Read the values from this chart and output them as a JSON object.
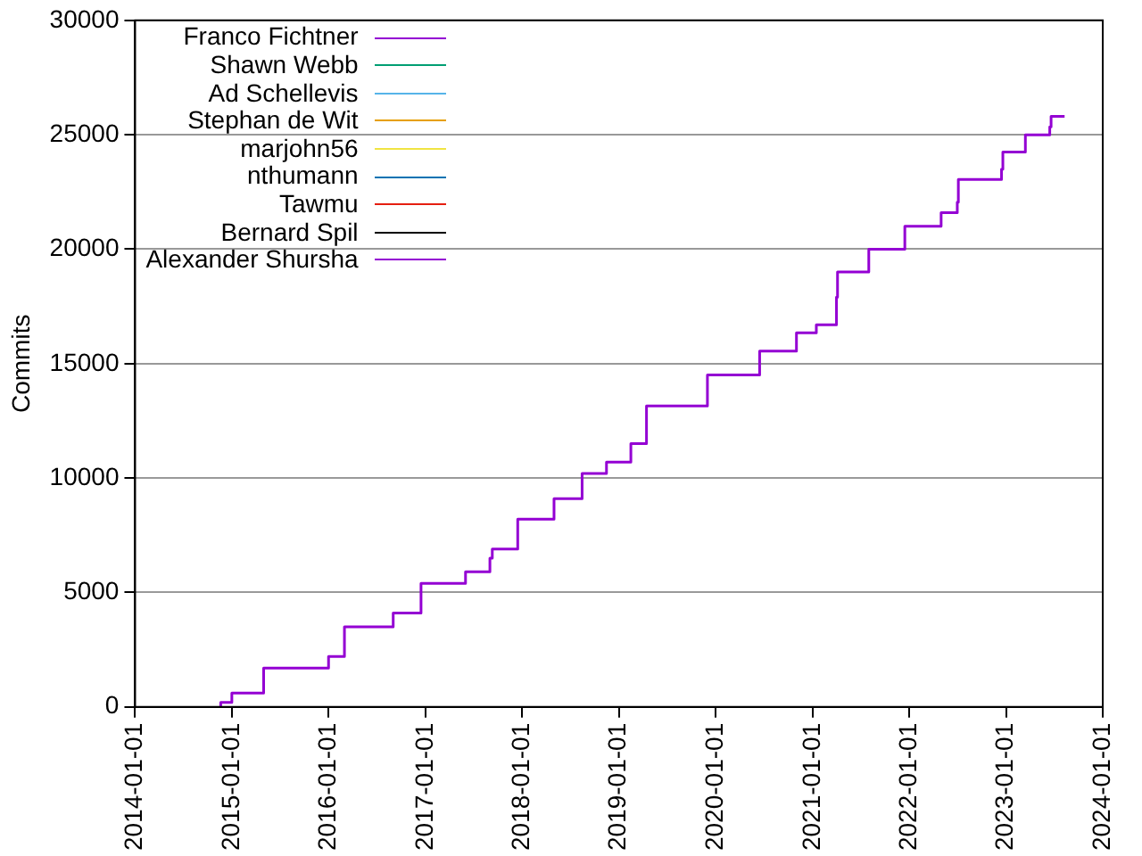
{
  "chart_data": {
    "type": "step",
    "ylabel": "Commits",
    "x": [
      "2014-11-20",
      "2015-01-01",
      "2015-05-01",
      "2016-01-01",
      "2016-03-01",
      "2016-09-01",
      "2016-12-15",
      "2017-06-01",
      "2017-09-01",
      "2017-09-10",
      "2017-12-15",
      "2018-05-01",
      "2018-08-15",
      "2018-11-15",
      "2019-02-15",
      "2019-04-15",
      "2019-12-01",
      "2020-06-15",
      "2020-11-01",
      "2021-01-15",
      "2021-04-01",
      "2021-04-05",
      "2021-08-01",
      "2021-12-15",
      "2022-05-01",
      "2022-07-01",
      "2022-07-05",
      "2022-12-15",
      "2022-12-20",
      "2023-03-15",
      "2023-06-15",
      "2023-06-20",
      "2023-08-10"
    ],
    "series": [
      {
        "name": "Franco Fichtner",
        "color": "#9400d3",
        "values": [
          0,
          200,
          600,
          1700,
          2200,
          3500,
          4100,
          5400,
          5900,
          6500,
          6900,
          8200,
          9100,
          10200,
          10700,
          11500,
          13150,
          14500,
          15550,
          16350,
          16700,
          17900,
          19000,
          20000,
          21000,
          21600,
          22050,
          23050,
          23500,
          24250,
          25000,
          25350,
          25800
        ]
      },
      {
        "name": "Shawn Webb",
        "color": "#009e73",
        "values": [
          null,
          null,
          null,
          null,
          null,
          null,
          null,
          null,
          null,
          null,
          null,
          null,
          null,
          null,
          null,
          null,
          null,
          null,
          null,
          null,
          null,
          null,
          null,
          null,
          null,
          null,
          null,
          null,
          null,
          null,
          null,
          null,
          null
        ]
      },
      {
        "name": "Ad Schellevis",
        "color": "#56b4e9",
        "values": [
          null,
          null,
          null,
          null,
          null,
          null,
          null,
          null,
          null,
          null,
          null,
          null,
          null,
          null,
          null,
          null,
          null,
          null,
          null,
          null,
          null,
          null,
          null,
          null,
          null,
          null,
          null,
          null,
          null,
          null,
          null,
          null,
          null
        ]
      },
      {
        "name": "Stephan de Wit",
        "color": "#e69f00",
        "values": [
          null,
          null,
          null,
          null,
          null,
          null,
          null,
          null,
          null,
          null,
          null,
          null,
          null,
          null,
          null,
          null,
          null,
          null,
          null,
          null,
          null,
          null,
          null,
          null,
          null,
          null,
          null,
          null,
          null,
          null,
          null,
          null,
          null
        ]
      },
      {
        "name": "marjohn56",
        "color": "#f0e442",
        "values": [
          null,
          null,
          null,
          null,
          null,
          null,
          null,
          null,
          null,
          null,
          null,
          null,
          null,
          null,
          null,
          null,
          null,
          null,
          null,
          null,
          null,
          null,
          null,
          null,
          null,
          null,
          null,
          null,
          null,
          null,
          null,
          null,
          null
        ]
      },
      {
        "name": "nthumann",
        "color": "#0072b2",
        "values": [
          null,
          null,
          null,
          null,
          null,
          null,
          null,
          null,
          null,
          null,
          null,
          null,
          null,
          null,
          null,
          null,
          null,
          null,
          null,
          null,
          null,
          null,
          null,
          null,
          null,
          null,
          null,
          null,
          null,
          null,
          null,
          null,
          null
        ]
      },
      {
        "name": "Tawmu",
        "color": "#e51e10",
        "values": [
          null,
          null,
          null,
          null,
          null,
          null,
          null,
          null,
          null,
          null,
          null,
          null,
          null,
          null,
          null,
          null,
          null,
          null,
          null,
          null,
          null,
          null,
          null,
          null,
          null,
          null,
          null,
          null,
          null,
          null,
          null,
          null,
          null
        ]
      },
      {
        "name": "Bernard Spil",
        "color": "#000000",
        "values": [
          null,
          null,
          null,
          null,
          null,
          null,
          null,
          null,
          null,
          null,
          null,
          null,
          null,
          null,
          null,
          null,
          null,
          null,
          null,
          null,
          null,
          null,
          null,
          null,
          null,
          null,
          null,
          null,
          null,
          null,
          null,
          null,
          null
        ]
      },
      {
        "name": "Alexander Shursha",
        "color": "#9400d3",
        "values": [
          null,
          null,
          null,
          null,
          null,
          null,
          null,
          null,
          null,
          null,
          null,
          null,
          null,
          null,
          null,
          null,
          null,
          null,
          null,
          null,
          null,
          null,
          null,
          null,
          null,
          null,
          null,
          null,
          null,
          null,
          null,
          null,
          null
        ]
      }
    ],
    "xlim": [
      "2014-01-01",
      "2024-01-01"
    ],
    "xticks": [
      "2014-01-01",
      "2015-01-01",
      "2016-01-01",
      "2017-01-01",
      "2018-01-01",
      "2019-01-01",
      "2020-01-01",
      "2021-01-01",
      "2022-01-01",
      "2023-01-01",
      "2024-01-01"
    ],
    "ylim": [
      0,
      30000
    ],
    "yticks": [
      0,
      5000,
      10000,
      15000,
      20000,
      25000,
      30000
    ],
    "grid": "y",
    "legend": "top left"
  }
}
